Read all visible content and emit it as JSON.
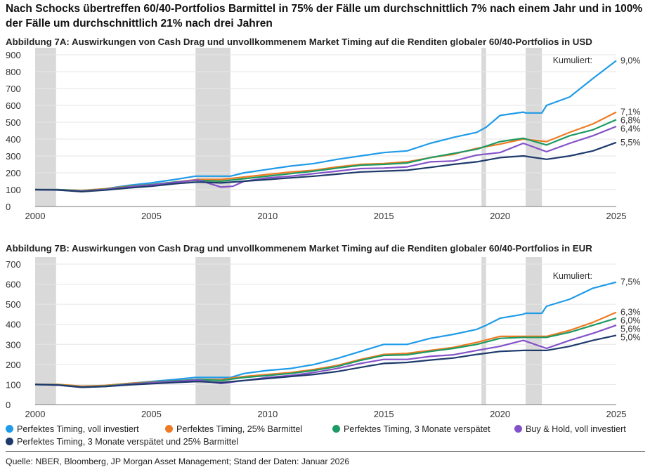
{
  "headline": "Nach Schocks übertreffen 60/40-Portfolios Barmittel in 75% der Fälle um durchschnittlich 7% nach einem Jahr und in 100% der Fälle um durchschnittlich 21% nach drei Jahren",
  "legend": [
    {
      "label": "Perfektes Timing, voll investiert",
      "color": "#1f9be8"
    },
    {
      "label": "Perfektes Timing, 25% Barmittel",
      "color": "#ee7b23"
    },
    {
      "label": "Perfektes Timing, 3 Monate verspätet",
      "color": "#1d9a63"
    },
    {
      "label": "Buy & Hold, voll investiert",
      "color": "#8452c8"
    },
    {
      "label": "Perfektes Timing, 3 Monate verspätet und 25% Barmittel",
      "color": "#1e3a6b"
    }
  ],
  "source": "Quelle: NBER, Bloomberg, JP Morgan Asset Management; Stand der Daten: Januar 2026",
  "chart_data": [
    {
      "type": "line",
      "title": "Abbildung 7A: Auswirkungen von Cash Drag und unvollkommenem Market Timing auf die Renditen globaler 60/40-Portfolios in USD",
      "xlim": [
        2000,
        2025
      ],
      "ylim": [
        0,
        900
      ],
      "xticks": [
        "2000",
        "2005",
        "2010",
        "2015",
        "2020",
        "2025"
      ],
      "yticks": [
        "0",
        "100",
        "200",
        "300",
        "400",
        "500",
        "600",
        "700",
        "800",
        "900"
      ],
      "shaded_periods": [
        [
          2000.0,
          2000.9
        ],
        [
          2006.9,
          2008.4
        ],
        [
          2019.2,
          2019.4
        ],
        [
          2021.1,
          2021.8
        ]
      ],
      "annotation": "Kumuliert:",
      "series": [
        {
          "name": "Perfektes Timing, voll investiert",
          "end_label": "9,0%",
          "color": "#1f9be8",
          "x": [
            2000,
            2001,
            2002,
            2003,
            2004,
            2005,
            2006,
            2006.9,
            2007.5,
            2008.4,
            2009,
            2010,
            2011,
            2012,
            2013,
            2014,
            2015,
            2016,
            2017,
            2018,
            2019,
            2019.4,
            2020,
            2021,
            2021.1,
            2021.8,
            2022,
            2023,
            2024,
            2025
          ],
          "y": [
            100,
            100,
            95,
            105,
            125,
            140,
            160,
            180,
            180,
            180,
            200,
            220,
            240,
            255,
            280,
            300,
            320,
            330,
            375,
            410,
            440,
            470,
            540,
            560,
            555,
            555,
            600,
            650,
            760,
            865
          ]
        },
        {
          "name": "Perfektes Timing, 25% Barmittel",
          "end_label": "7,1%",
          "color": "#ee7b23",
          "x": [
            2000,
            2001,
            2002,
            2003,
            2004,
            2005,
            2006,
            2007,
            2008,
            2009,
            2010,
            2011,
            2012,
            2013,
            2014,
            2015,
            2016,
            2017,
            2018,
            2019,
            2020,
            2021,
            2022,
            2023,
            2024,
            2025
          ],
          "y": [
            100,
            100,
            95,
            105,
            120,
            130,
            145,
            160,
            160,
            175,
            190,
            205,
            215,
            235,
            250,
            255,
            265,
            290,
            310,
            345,
            370,
            400,
            385,
            440,
            490,
            560
          ]
        },
        {
          "name": "Perfektes Timing, 3 Monate verspätet",
          "end_label": "6,8%",
          "color": "#1d9a63",
          "x": [
            2000,
            2001,
            2002,
            2003,
            2004,
            2005,
            2006,
            2007,
            2008,
            2009,
            2010,
            2011,
            2012,
            2013,
            2014,
            2015,
            2016,
            2017,
            2018,
            2019,
            2020,
            2021,
            2022,
            2023,
            2024,
            2025
          ],
          "y": [
            100,
            100,
            92,
            102,
            118,
            130,
            145,
            155,
            150,
            165,
            180,
            195,
            210,
            228,
            245,
            250,
            258,
            290,
            315,
            340,
            385,
            405,
            365,
            420,
            455,
            515
          ]
        },
        {
          "name": "Buy & Hold, voll investiert",
          "end_label": "6,4%",
          "color": "#8452c8",
          "x": [
            2000,
            2001,
            2002,
            2003,
            2004,
            2005,
            2006,
            2007,
            2008,
            2008.5,
            2009,
            2010,
            2011,
            2012,
            2013,
            2014,
            2015,
            2016,
            2017,
            2018,
            2019,
            2020,
            2021,
            2022,
            2023,
            2024,
            2025
          ],
          "y": [
            100,
            98,
            90,
            100,
            115,
            128,
            142,
            158,
            115,
            120,
            150,
            170,
            180,
            195,
            210,
            225,
            228,
            235,
            265,
            270,
            305,
            320,
            375,
            325,
            375,
            420,
            475
          ]
        },
        {
          "name": "Perfektes Timing, 3 Monate verspätet und 25% Barmittel",
          "end_label": "5,5%",
          "color": "#1e3a6b",
          "x": [
            2000,
            2001,
            2002,
            2003,
            2004,
            2005,
            2006,
            2007,
            2008,
            2009,
            2010,
            2011,
            2012,
            2013,
            2014,
            2015,
            2016,
            2017,
            2018,
            2019,
            2020,
            2021,
            2022,
            2023,
            2024,
            2025
          ],
          "y": [
            100,
            98,
            88,
            97,
            110,
            120,
            135,
            145,
            140,
            150,
            160,
            170,
            180,
            192,
            205,
            210,
            215,
            232,
            250,
            265,
            290,
            300,
            280,
            300,
            330,
            380
          ]
        }
      ]
    },
    {
      "type": "line",
      "title": "Abbildung 7B: Auswirkungen von Cash Drag und unvollkommenem Market Timing auf die Renditen globaler 60/40-Portfolios in EUR",
      "xlim": [
        2000,
        2025
      ],
      "ylim": [
        0,
        700
      ],
      "xticks": [
        "2000",
        "2005",
        "2010",
        "2015",
        "2020",
        "2025"
      ],
      "yticks": [
        "0",
        "100",
        "200",
        "300",
        "400",
        "500",
        "600",
        "700"
      ],
      "shaded_periods": [
        [
          2000.0,
          2000.9
        ],
        [
          2006.9,
          2008.4
        ],
        [
          2019.2,
          2019.4
        ],
        [
          2021.1,
          2021.8
        ]
      ],
      "annotation": "Kumuliert:",
      "series": [
        {
          "name": "Perfektes Timing, voll investiert",
          "end_label": "7,5%",
          "color": "#1f9be8",
          "x": [
            2000,
            2001,
            2002,
            2003,
            2004,
            2005,
            2006,
            2006.9,
            2008.4,
            2009,
            2010,
            2011,
            2012,
            2013,
            2014,
            2015,
            2016,
            2017,
            2018,
            2019,
            2019.4,
            2020,
            2021,
            2021.1,
            2021.8,
            2022,
            2023,
            2024,
            2025
          ],
          "y": [
            100,
            100,
            90,
            95,
            105,
            115,
            125,
            135,
            135,
            155,
            170,
            180,
            200,
            230,
            265,
            300,
            300,
            330,
            350,
            375,
            395,
            430,
            450,
            455,
            455,
            490,
            525,
            580,
            610
          ]
        },
        {
          "name": "Perfektes Timing, 25% Barmittel",
          "end_label": "6,3%",
          "color": "#ee7b23",
          "x": [
            2000,
            2001,
            2002,
            2003,
            2004,
            2005,
            2006,
            2007,
            2008,
            2009,
            2010,
            2011,
            2012,
            2013,
            2014,
            2015,
            2016,
            2017,
            2018,
            2019,
            2020,
            2021,
            2022,
            2023,
            2024,
            2025
          ],
          "y": [
            100,
            100,
            92,
            95,
            105,
            112,
            118,
            125,
            125,
            140,
            150,
            160,
            175,
            195,
            225,
            250,
            255,
            270,
            285,
            310,
            340,
            340,
            340,
            370,
            410,
            460
          ]
        },
        {
          "name": "Perfektes Timing, 3 Monate verspätet",
          "end_label": "6,0%",
          "color": "#1d9a63",
          "x": [
            2000,
            2001,
            2002,
            2003,
            2004,
            2005,
            2006,
            2007,
            2008,
            2009,
            2010,
            2011,
            2012,
            2013,
            2014,
            2015,
            2016,
            2017,
            2018,
            2019,
            2020,
            2021,
            2022,
            2023,
            2024,
            2025
          ],
          "y": [
            100,
            98,
            88,
            92,
            102,
            110,
            118,
            125,
            120,
            135,
            145,
            155,
            170,
            190,
            220,
            245,
            248,
            265,
            280,
            300,
            330,
            335,
            335,
            360,
            395,
            430
          ]
        },
        {
          "name": "Buy & Hold, voll investiert",
          "end_label": "5,6%",
          "color": "#8452c8",
          "x": [
            2000,
            2001,
            2002,
            2003,
            2004,
            2005,
            2006,
            2007,
            2008,
            2009,
            2010,
            2011,
            2012,
            2013,
            2014,
            2015,
            2016,
            2017,
            2018,
            2019,
            2020,
            2021,
            2022,
            2023,
            2024,
            2025
          ],
          "y": [
            100,
            97,
            86,
            90,
            100,
            108,
            115,
            122,
            105,
            120,
            135,
            145,
            160,
            180,
            205,
            225,
            225,
            240,
            248,
            270,
            290,
            320,
            280,
            320,
            355,
            395
          ]
        },
        {
          "name": "Perfektes Timing, 3 Monate verspätet und 25% Barmittel",
          "end_label": "5,0%",
          "color": "#1e3a6b",
          "x": [
            2000,
            2001,
            2002,
            2003,
            2004,
            2005,
            2006,
            2007,
            2008,
            2009,
            2010,
            2011,
            2012,
            2013,
            2014,
            2015,
            2016,
            2017,
            2018,
            2019,
            2020,
            2021,
            2022,
            2023,
            2024,
            2025
          ],
          "y": [
            100,
            97,
            86,
            90,
            98,
            104,
            110,
            115,
            110,
            120,
            130,
            140,
            150,
            165,
            185,
            205,
            210,
            222,
            232,
            250,
            265,
            270,
            270,
            290,
            320,
            345
          ]
        }
      ]
    }
  ]
}
